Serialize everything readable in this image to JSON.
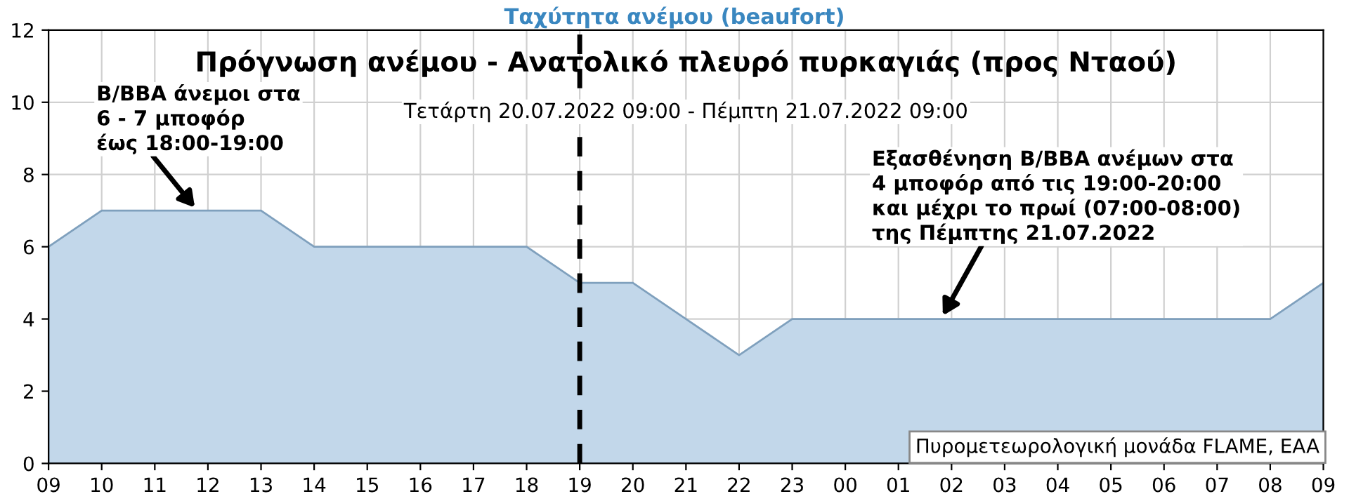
{
  "chart_data": {
    "type": "area",
    "title": "Ταχύτητα ανέμου (beaufort)",
    "subtitle": "Πρόγνωση ανέμου - Ανατολικό πλευρό πυρκαγιάς (προς Νταού)",
    "categories": [
      "09",
      "10",
      "11",
      "12",
      "13",
      "14",
      "15",
      "16",
      "17",
      "18",
      "19",
      "20",
      "21",
      "22",
      "23",
      "00",
      "01",
      "02",
      "03",
      "04",
      "05",
      "06",
      "07",
      "08",
      "09"
    ],
    "series": [
      {
        "color": "#c2d7ea",
        "values": [
          6,
          7,
          7,
          7,
          7,
          6,
          6,
          6,
          6,
          6,
          5,
          5,
          4,
          3,
          4,
          4,
          4,
          4,
          4,
          4,
          4,
          4,
          4,
          4,
          5
        ]
      }
    ],
    "ylim": [
      0,
      12
    ],
    "yticks": [
      0,
      2,
      4,
      6,
      8,
      10,
      12
    ],
    "grid": true,
    "ref_lines": [
      {
        "axis": "x",
        "value": "19",
        "color": "#000000",
        "line_style": "dashed"
      }
    ],
    "annotations": [
      "Τετάρτη 20.07.2022 09:00 - Πέμπτη 21.07.2022 09:00",
      {
        "text": "Β/ΒΒΑ άνεμοι στα\n6 - 7 μποφόρ\nέως 18:00-19:00",
        "x": "12",
        "y": 7
      },
      {
        "text": "Εξασθένηση Β/ΒΒΑ ανέμων στα\n4 μποφόρ από τις 19:00-20:00\nκαι μέχρι το πρωί (07:00-08:00)\nτης Πέμπτης 21.07.2022",
        "x": "02",
        "y": 4
      },
      "Πυρομετεωρολογική μονάδα FLAME, EAA"
    ]
  }
}
